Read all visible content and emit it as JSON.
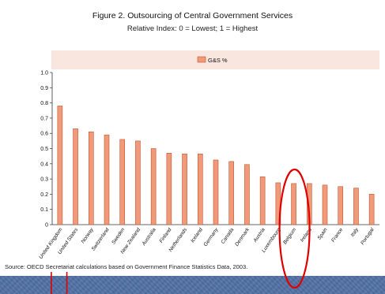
{
  "figure": {
    "title": "Figure 2.    Outsourcing of Central Government Services",
    "subtitle": "Relative Index: 0 = Lowest; 1 = Highest",
    "source": "Source:  OECD Secretariat calculations based on Government Finance Statistics Data, 2003."
  },
  "colors": {
    "bar": "#f09a7a",
    "bar_stroke": "#c2542f",
    "legend_band": "#f9e6de",
    "annotation": "#e00000"
  },
  "chart_data": {
    "type": "bar",
    "categories": [
      "United Kingdom",
      "United States",
      "Norway",
      "Switzerland",
      "Sweden",
      "New Zealand",
      "Australia",
      "Finland",
      "Netherlands",
      "Iceland",
      "Germany",
      "Canada",
      "Denmark",
      "Austria",
      "Luxembourg",
      "Belgium",
      "Ireland",
      "Spain",
      "France",
      "Italy",
      "Portugal"
    ],
    "series": [
      {
        "name": "G&S %",
        "values": [
          0.78,
          0.63,
          0.61,
          0.59,
          0.56,
          0.55,
          0.5,
          0.47,
          0.465,
          0.465,
          0.425,
          0.415,
          0.395,
          0.315,
          0.275,
          0.27,
          0.27,
          0.26,
          0.25,
          0.24,
          0.2
        ]
      }
    ],
    "ylim": [
      0,
      1.0
    ],
    "yticks": [
      "0",
      "0.1",
      "0.2",
      "0.3",
      "0.4",
      "0.5",
      "0.6",
      "0.7",
      "0.8",
      "0.9",
      "1.0"
    ],
    "legend_position": "top-center",
    "grid": false,
    "annotations": [
      {
        "type": "ellipse",
        "target_category": "Belgium"
      },
      {
        "type": "line",
        "target_category": "United Kingdom"
      },
      {
        "type": "line",
        "target_category": "United States"
      }
    ]
  }
}
